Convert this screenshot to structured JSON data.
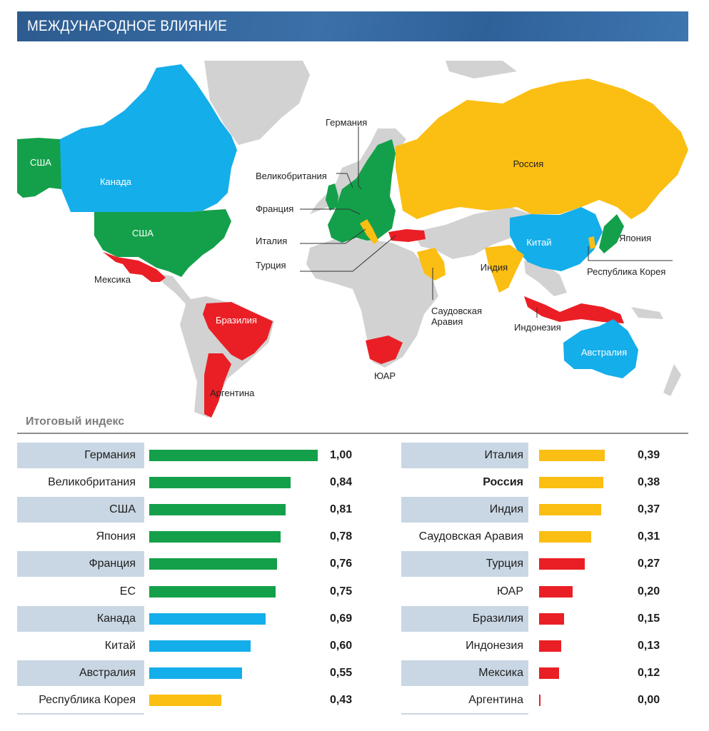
{
  "header": {
    "title": "МЕЖДУНАРОДНОЕ ВЛИЯНИЕ"
  },
  "colors": {
    "green": "#14a04a",
    "blue": "#14aeea",
    "yellow": "#fbbe12",
    "red": "#ea1f25",
    "grey": "#d2d2d2",
    "row": "#c9d7e4"
  },
  "map": {
    "labels": {
      "usa": "США",
      "alaska": "США",
      "canada": "Канада",
      "mexico": "Мексика",
      "brazil": "Бразилия",
      "argentina": "Аргентина",
      "germany": "Германия",
      "uk": "Великобритания",
      "france": "Франция",
      "italy": "Италия",
      "turkey": "Турция",
      "russia": "Россия",
      "china": "Китай",
      "japan": "Япония",
      "korea": "Республика Корея",
      "india": "Индия",
      "saudi_1": "Саудовская",
      "saudi_2": "Аравия",
      "indonesia": "Индонезия",
      "australia": "Австралия",
      "sa": "ЮАР"
    }
  },
  "chart_data": {
    "type": "bar",
    "subtitle": "Итоговый индекс",
    "categories": [
      "Германия",
      "Великобритания",
      "США",
      "Япония",
      "Франция",
      "ЕС",
      "Канада",
      "Китай",
      "Австралия",
      "Республика Корея",
      "Италия",
      "Россия",
      "Индия",
      "Саудовская Аравия",
      "Турция",
      "ЮАР",
      "Бразилия",
      "Индонезия",
      "Мексика",
      "Аргентина"
    ],
    "values": [
      1.0,
      0.84,
      0.81,
      0.78,
      0.76,
      0.75,
      0.69,
      0.6,
      0.55,
      0.43,
      0.39,
      0.38,
      0.37,
      0.31,
      0.27,
      0.2,
      0.15,
      0.13,
      0.12,
      0.0
    ],
    "value_labels": [
      "1,00",
      "0,84",
      "0,81",
      "0,78",
      "0,76",
      "0,75",
      "0,69",
      "0,60",
      "0,55",
      "0,43",
      "0,39",
      "0,38",
      "0,37",
      "0,31",
      "0,27",
      "0,20",
      "0,15",
      "0,13",
      "0,12",
      "0,00"
    ],
    "bar_colors": [
      "green",
      "green",
      "green",
      "green",
      "green",
      "green",
      "blue",
      "blue",
      "blue",
      "yellow",
      "yellow",
      "yellow",
      "yellow",
      "yellow",
      "red",
      "red",
      "red",
      "red",
      "red",
      "red"
    ],
    "bold": [
      false,
      false,
      false,
      false,
      false,
      false,
      false,
      false,
      false,
      false,
      false,
      true,
      false,
      false,
      false,
      false,
      false,
      false,
      false,
      false
    ],
    "xlim": [
      0,
      1
    ],
    "columns": 2
  }
}
